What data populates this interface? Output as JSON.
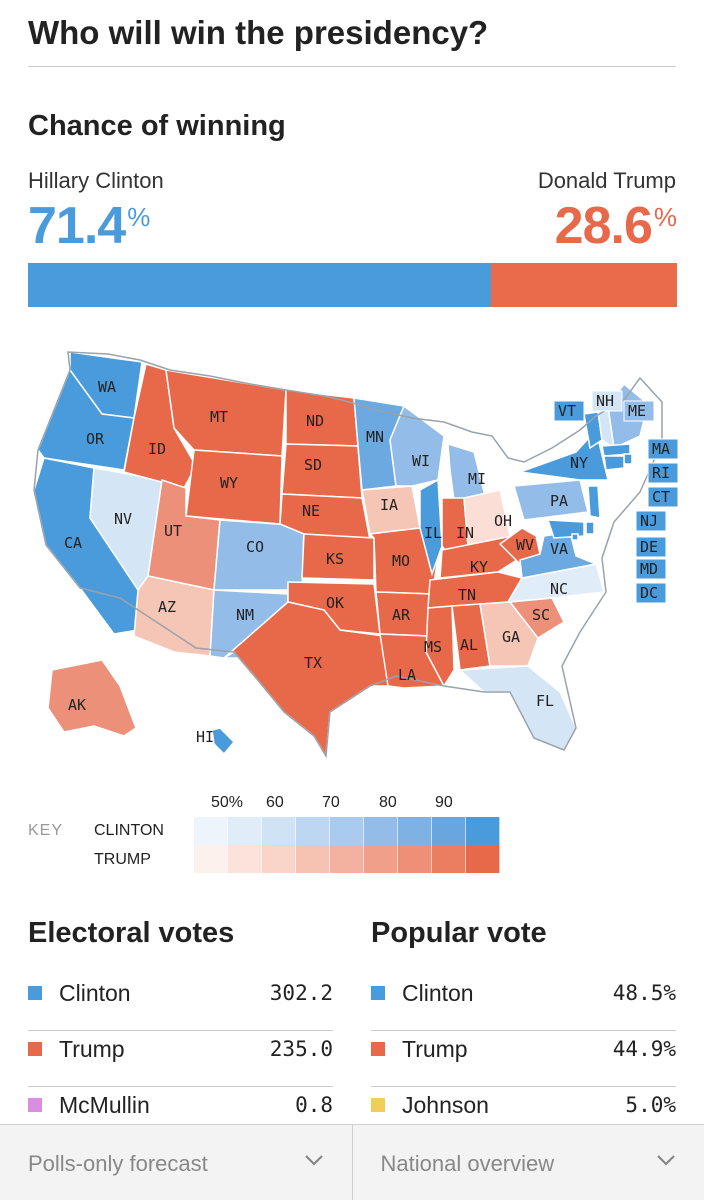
{
  "header": {
    "title": "Who will win the presidency?"
  },
  "chance": {
    "title": "Chance of winning",
    "clinton": {
      "name": "Hillary Clinton",
      "value": "71.4",
      "pct_sign": "%"
    },
    "trump": {
      "name": "Donald Trump",
      "value": "28.6",
      "pct_sign": "%"
    },
    "bar": {
      "clinton_fraction": 0.714,
      "trump_fraction": 0.286
    }
  },
  "map": {
    "states": [
      {
        "abbr": "WA",
        "color": "#4a9bdc"
      },
      {
        "abbr": "OR",
        "color": "#4a9bdc"
      },
      {
        "abbr": "CA",
        "color": "#4a9bdc"
      },
      {
        "abbr": "NV",
        "color": "#d4e5f6"
      },
      {
        "abbr": "ID",
        "color": "#e8684a"
      },
      {
        "abbr": "MT",
        "color": "#e8684a"
      },
      {
        "abbr": "WY",
        "color": "#e8684a"
      },
      {
        "abbr": "UT",
        "color": "#ec907a"
      },
      {
        "abbr": "AZ",
        "color": "#f5c5b6"
      },
      {
        "abbr": "CO",
        "color": "#93bde8"
      },
      {
        "abbr": "NM",
        "color": "#93bde8"
      },
      {
        "abbr": "ND",
        "color": "#e8684a"
      },
      {
        "abbr": "SD",
        "color": "#e8684a"
      },
      {
        "abbr": "NE",
        "color": "#e8684a"
      },
      {
        "abbr": "KS",
        "color": "#e8684a"
      },
      {
        "abbr": "OK",
        "color": "#e8684a"
      },
      {
        "abbr": "TX",
        "color": "#e8684a"
      },
      {
        "abbr": "MN",
        "color": "#6ba9e0"
      },
      {
        "abbr": "IA",
        "color": "#f5c5b6"
      },
      {
        "abbr": "MO",
        "color": "#e8684a"
      },
      {
        "abbr": "AR",
        "color": "#e8684a"
      },
      {
        "abbr": "LA",
        "color": "#e8684a"
      },
      {
        "abbr": "WI",
        "color": "#93bde8"
      },
      {
        "abbr": "IL",
        "color": "#4a9bdc"
      },
      {
        "abbr": "MI",
        "color": "#93bde8"
      },
      {
        "abbr": "IN",
        "color": "#e8684a"
      },
      {
        "abbr": "OH",
        "color": "#fbded5"
      },
      {
        "abbr": "KY",
        "color": "#e8684a"
      },
      {
        "abbr": "TN",
        "color": "#e8684a"
      },
      {
        "abbr": "MS",
        "color": "#e8684a"
      },
      {
        "abbr": "AL",
        "color": "#e8684a"
      },
      {
        "abbr": "GA",
        "color": "#f5c5b6"
      },
      {
        "abbr": "SC",
        "color": "#ec907a"
      },
      {
        "abbr": "NC",
        "color": "#e0ecf8"
      },
      {
        "abbr": "FL",
        "color": "#d4e5f6"
      },
      {
        "abbr": "WV",
        "color": "#e8684a"
      },
      {
        "abbr": "VA",
        "color": "#6ba9e0"
      },
      {
        "abbr": "PA",
        "color": "#93bde8"
      },
      {
        "abbr": "NY",
        "color": "#4a9bdc"
      },
      {
        "abbr": "VT",
        "color": "#4a9bdc"
      },
      {
        "abbr": "NH",
        "color": "#d4e5f6"
      },
      {
        "abbr": "ME",
        "color": "#93bde8"
      },
      {
        "abbr": "MA",
        "color": "#4a9bdc"
      },
      {
        "abbr": "RI",
        "color": "#4a9bdc"
      },
      {
        "abbr": "CT",
        "color": "#4a9bdc"
      },
      {
        "abbr": "NJ",
        "color": "#4a9bdc"
      },
      {
        "abbr": "DE",
        "color": "#4a9bdc"
      },
      {
        "abbr": "MD",
        "color": "#4a9bdc"
      },
      {
        "abbr": "DC",
        "color": "#4a9bdc"
      },
      {
        "abbr": "AK",
        "color": "#ec907a"
      },
      {
        "abbr": "HI",
        "color": "#4a9bdc"
      }
    ]
  },
  "key": {
    "label": "KEY",
    "clinton_label": "CLINTON",
    "trump_label": "TRUMP",
    "ticks": [
      "50%",
      "60",
      "70",
      "80",
      "90"
    ],
    "clinton_colors": [
      "#eef4fc",
      "#e0ecf8",
      "#d0e3f5",
      "#bdd7f2",
      "#a9cbee",
      "#93bde8",
      "#7eb2e4",
      "#69a6e0",
      "#4a9bdc"
    ],
    "trump_colors": [
      "#fdf1ed",
      "#fbe2da",
      "#f9d4c8",
      "#f6c3b3",
      "#f3b29f",
      "#f0a08a",
      "#ee9077",
      "#eb7d61",
      "#e8684a"
    ]
  },
  "electoral": {
    "title": "Electoral votes",
    "rows": [
      {
        "name": "Clinton",
        "value": "302.2",
        "color": "#4a9bdc"
      },
      {
        "name": "Trump",
        "value": "235.0",
        "color": "#e8684a"
      },
      {
        "name": "McMullin",
        "value": "0.8",
        "color": "#d98fe0"
      }
    ]
  },
  "popular": {
    "title": "Popular vote",
    "rows": [
      {
        "name": "Clinton",
        "value": "48.5%",
        "color": "#4a9bdc"
      },
      {
        "name": "Trump",
        "value": "44.9%",
        "color": "#e8684a"
      },
      {
        "name": "Johnson",
        "value": "5.0%",
        "color": "#f2cd5c"
      }
    ]
  },
  "footer": {
    "forecast_select": "Polls-only forecast",
    "view_select": "National overview"
  }
}
